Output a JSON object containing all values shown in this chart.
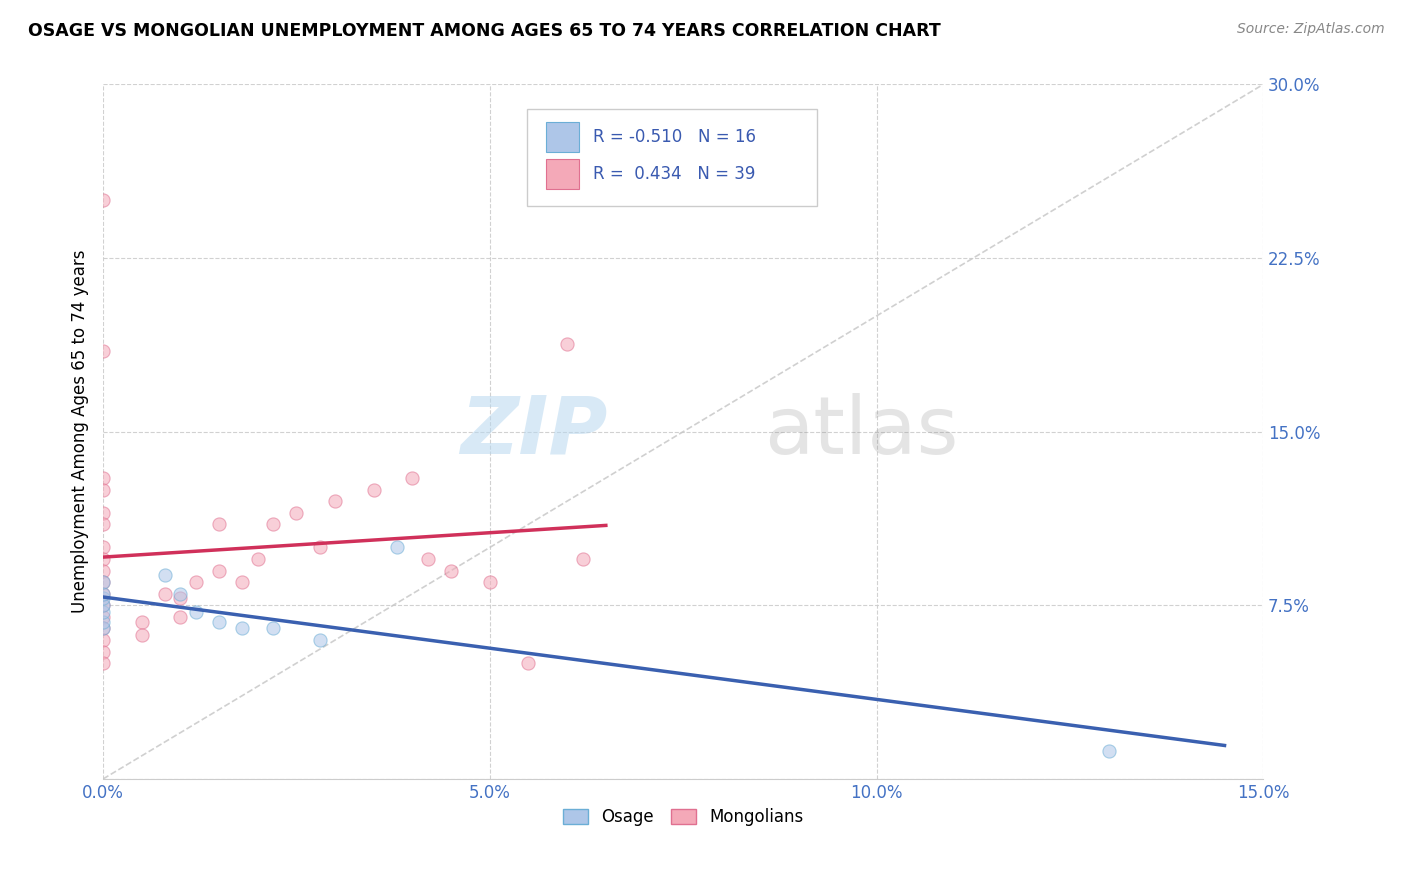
{
  "title": "OSAGE VS MONGOLIAN UNEMPLOYMENT AMONG AGES 65 TO 74 YEARS CORRELATION CHART",
  "source": "Source: ZipAtlas.com",
  "ylabel": "Unemployment Among Ages 65 to 74 years",
  "xlim": [
    0.0,
    0.15
  ],
  "ylim": [
    0.0,
    0.3
  ],
  "xticks": [
    0.0,
    0.05,
    0.1,
    0.15
  ],
  "xticklabels": [
    "0.0%",
    "5.0%",
    "10.0%",
    "15.0%"
  ],
  "yticks": [
    0.0,
    0.075,
    0.15,
    0.225,
    0.3
  ],
  "yticklabels": [
    "",
    "7.5%",
    "15.0%",
    "22.5%",
    "30.0%"
  ],
  "watermark_zip": "ZIP",
  "watermark_atlas": "atlas",
  "osage_color": "#aec6e8",
  "mongolian_color": "#f4a9b8",
  "osage_edge_color": "#6baed6",
  "mongolian_edge_color": "#e07090",
  "osage_line_color": "#3a60b0",
  "mongolian_line_color": "#d0305a",
  "diag_line_color": "#c8c8c8",
  "R_osage": -0.51,
  "N_osage": 16,
  "R_mongolian": 0.434,
  "N_mongolian": 39,
  "osage_x": [
    0.0,
    0.0,
    0.0,
    0.0,
    0.0,
    0.0,
    0.0,
    0.008,
    0.01,
    0.012,
    0.015,
    0.018,
    0.022,
    0.028,
    0.038,
    0.13
  ],
  "osage_y": [
    0.065,
    0.068,
    0.072,
    0.075,
    0.078,
    0.08,
    0.085,
    0.088,
    0.08,
    0.072,
    0.068,
    0.065,
    0.065,
    0.06,
    0.1,
    0.012
  ],
  "mongolian_x": [
    0.0,
    0.0,
    0.0,
    0.0,
    0.0,
    0.0,
    0.0,
    0.0,
    0.0,
    0.0,
    0.0,
    0.0,
    0.0,
    0.0,
    0.0,
    0.0,
    0.0,
    0.005,
    0.005,
    0.008,
    0.01,
    0.01,
    0.012,
    0.015,
    0.015,
    0.018,
    0.02,
    0.022,
    0.025,
    0.028,
    0.03,
    0.035,
    0.04,
    0.042,
    0.045,
    0.05,
    0.055,
    0.06,
    0.062
  ],
  "mongolian_y": [
    0.25,
    0.185,
    0.13,
    0.125,
    0.115,
    0.11,
    0.1,
    0.095,
    0.09,
    0.085,
    0.08,
    0.075,
    0.07,
    0.065,
    0.06,
    0.055,
    0.05,
    0.068,
    0.062,
    0.08,
    0.078,
    0.07,
    0.085,
    0.11,
    0.09,
    0.085,
    0.095,
    0.11,
    0.115,
    0.1,
    0.12,
    0.125,
    0.13,
    0.095,
    0.09,
    0.085,
    0.05,
    0.188,
    0.095
  ],
  "background_color": "#ffffff",
  "grid_color": "#cccccc",
  "marker_size": 90,
  "marker_alpha": 0.55
}
